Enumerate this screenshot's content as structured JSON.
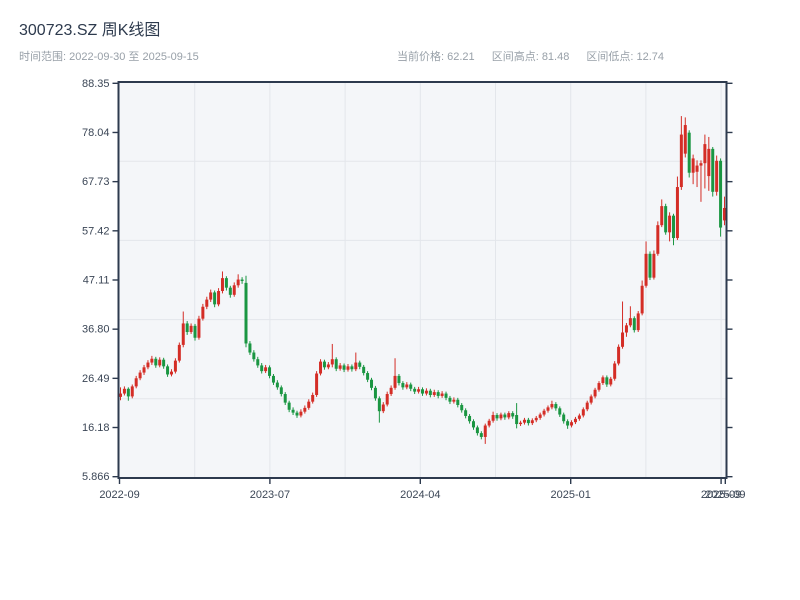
{
  "header": {
    "title": "300723.SZ 周K线图",
    "subtitle_left": "时间范围: 2022-09-30 至 2025-09-15",
    "stats": [
      {
        "text": "当前价格: 62.21"
      },
      {
        "text": "区间高点: 81.48"
      },
      {
        "text": "区间低点: 12.74"
      }
    ]
  },
  "chart_data": {
    "type": "candlestick",
    "symbol": "300723.SZ",
    "interval": "weekly",
    "title": "300723.SZ 周K线图",
    "date_start": "2022-09-30",
    "date_end": "2025-09-15",
    "current_price": 62.21,
    "range_high": 81.48,
    "range_low": 12.74,
    "grid": "on",
    "colors": {
      "up": "#d42d26",
      "down": "#1a9642",
      "plot_bg": "#f4f6f9",
      "grid_line": "#e3e6eb",
      "axis_border": "#2d3a4e",
      "tick_text": "#3b4656"
    },
    "y_axis": {
      "min": 5.866,
      "max": 88.35,
      "tick_labels": [
        "88.35",
        "78.04",
        "67.73",
        "57.42",
        "47.11",
        "36.80",
        "26.49",
        "16.18",
        "5.866"
      ],
      "tick_values": [
        88.35,
        78.04,
        67.73,
        57.42,
        47.11,
        36.8,
        26.49,
        16.18,
        5.866
      ]
    },
    "x_axis": {
      "ticks": [
        {
          "label": "2022-09",
          "f": 0
        },
        {
          "label": "2023-07",
          "f": 0.25
        },
        {
          "label": "2024-04",
          "f": 0.5
        },
        {
          "label": "2025-01",
          "f": 0.75
        },
        {
          "label": "2025-09",
          "f": 1
        },
        {
          "label": "2025-09",
          "f": 1.007
        }
      ]
    },
    "candles": [
      [
        22.6,
        24.6,
        21.9,
        23.3
      ],
      [
        23.3,
        24.8,
        22.9,
        24.3
      ],
      [
        24.3,
        24.6,
        21.8,
        22.7
      ],
      [
        22.7,
        25.2,
        22.3,
        24.8
      ],
      [
        24.8,
        27.0,
        24.4,
        26.5
      ],
      [
        26.5,
        28.2,
        26.1,
        27.7
      ],
      [
        27.7,
        29.3,
        27.2,
        28.8
      ],
      [
        28.8,
        30.3,
        28.4,
        29.8
      ],
      [
        29.8,
        31.2,
        29.3,
        30.6
      ],
      [
        30.6,
        31.0,
        28.7,
        29.2
      ],
      [
        29.2,
        30.9,
        28.8,
        30.4
      ],
      [
        30.4,
        30.8,
        28.5,
        29.0
      ],
      [
        29.0,
        29.4,
        26.8,
        27.3
      ],
      [
        27.3,
        28.4,
        26.9,
        27.9
      ],
      [
        27.9,
        30.7,
        27.5,
        30.2
      ],
      [
        30.2,
        34.0,
        29.8,
        33.5
      ],
      [
        33.5,
        40.5,
        33.0,
        38.0
      ],
      [
        38.0,
        38.5,
        35.6,
        36.2
      ],
      [
        36.2,
        38.0,
        35.8,
        37.5
      ],
      [
        37.5,
        37.9,
        34.4,
        35.0
      ],
      [
        35.0,
        39.6,
        34.6,
        39.0
      ],
      [
        39.0,
        42.1,
        38.6,
        41.5
      ],
      [
        41.5,
        43.6,
        41.0,
        43.0
      ],
      [
        43.0,
        45.1,
        42.5,
        44.5
      ],
      [
        44.5,
        44.9,
        41.4,
        42.0
      ],
      [
        42.0,
        45.4,
        41.6,
        44.8
      ],
      [
        44.8,
        48.9,
        44.3,
        47.5
      ],
      [
        47.5,
        47.9,
        44.9,
        45.5
      ],
      [
        45.5,
        45.9,
        43.4,
        44.0
      ],
      [
        44.0,
        46.6,
        43.6,
        46.0
      ],
      [
        46.0,
        48.3,
        45.5,
        47.2
      ],
      [
        47.2,
        47.7,
        46.3,
        46.9
      ],
      [
        46.5,
        48.0,
        33.0,
        33.8
      ],
      [
        33.8,
        34.3,
        31.4,
        31.9
      ],
      [
        31.9,
        32.4,
        30.0,
        30.5
      ],
      [
        30.5,
        31.0,
        28.7,
        29.2
      ],
      [
        29.2,
        29.7,
        27.5,
        28.0
      ],
      [
        28.0,
        29.3,
        27.6,
        28.8
      ],
      [
        28.8,
        29.2,
        26.5,
        27.0
      ],
      [
        27.0,
        27.4,
        25.1,
        25.6
      ],
      [
        25.6,
        26.1,
        24.1,
        24.6
      ],
      [
        24.6,
        25.0,
        22.7,
        23.2
      ],
      [
        23.2,
        23.6,
        20.9,
        21.4
      ],
      [
        21.4,
        21.8,
        19.4,
        19.9
      ],
      [
        19.9,
        20.4,
        18.8,
        19.3
      ],
      [
        19.3,
        19.7,
        18.2,
        18.7
      ],
      [
        18.7,
        20.0,
        18.3,
        19.5
      ],
      [
        19.5,
        20.8,
        19.1,
        20.3
      ],
      [
        20.3,
        22.1,
        19.9,
        21.6
      ],
      [
        21.6,
        23.5,
        21.2,
        23.0
      ],
      [
        23.0,
        28.0,
        22.6,
        27.5
      ],
      [
        27.5,
        30.5,
        27.1,
        30.0
      ],
      [
        30.0,
        30.4,
        28.3,
        28.8
      ],
      [
        28.8,
        29.9,
        28.4,
        29.4
      ],
      [
        29.4,
        33.7,
        28.8,
        30.5
      ],
      [
        30.5,
        30.9,
        28.0,
        28.5
      ],
      [
        28.5,
        29.7,
        28.1,
        29.2
      ],
      [
        29.2,
        29.6,
        27.8,
        28.3
      ],
      [
        28.3,
        29.5,
        27.9,
        29.0
      ],
      [
        29.0,
        29.4,
        27.9,
        28.4
      ],
      [
        28.4,
        31.9,
        28.0,
        29.8
      ],
      [
        29.8,
        30.2,
        28.4,
        28.9
      ],
      [
        28.9,
        29.3,
        27.1,
        27.6
      ],
      [
        27.6,
        28.0,
        25.7,
        26.2
      ],
      [
        26.2,
        26.6,
        24.0,
        24.5
      ],
      [
        24.5,
        24.9,
        21.8,
        22.3
      ],
      [
        22.3,
        22.7,
        17.2,
        19.6
      ],
      [
        19.6,
        21.5,
        19.2,
        21.0
      ],
      [
        21.0,
        23.7,
        20.6,
        23.2
      ],
      [
        23.2,
        25.0,
        22.8,
        24.5
      ],
      [
        24.5,
        30.7,
        24.1,
        27.0
      ],
      [
        27.0,
        27.4,
        25.0,
        25.5
      ],
      [
        25.5,
        25.9,
        24.1,
        24.6
      ],
      [
        24.6,
        25.7,
        24.2,
        25.2
      ],
      [
        25.2,
        25.6,
        23.8,
        24.3
      ],
      [
        24.3,
        24.7,
        23.2,
        23.7
      ],
      [
        23.7,
        24.7,
        23.3,
        24.2
      ],
      [
        24.2,
        24.6,
        22.8,
        23.3
      ],
      [
        23.3,
        24.4,
        22.9,
        23.9
      ],
      [
        23.9,
        24.3,
        22.5,
        23.0
      ],
      [
        23.0,
        24.1,
        22.6,
        23.6
      ],
      [
        23.6,
        24.0,
        22.3,
        22.8
      ],
      [
        22.8,
        23.8,
        22.4,
        23.3
      ],
      [
        23.3,
        23.7,
        21.9,
        22.4
      ],
      [
        22.4,
        22.8,
        21.1,
        21.6
      ],
      [
        21.6,
        22.5,
        21.2,
        22.0
      ],
      [
        22.0,
        22.4,
        20.4,
        20.9
      ],
      [
        20.9,
        21.3,
        19.3,
        19.8
      ],
      [
        19.8,
        20.2,
        18.1,
        18.6
      ],
      [
        18.6,
        19.0,
        17.0,
        17.5
      ],
      [
        17.5,
        17.9,
        15.7,
        16.2
      ],
      [
        16.2,
        16.6,
        14.5,
        15.0
      ],
      [
        15.0,
        15.4,
        13.7,
        14.2
      ],
      [
        14.2,
        17.0,
        12.74,
        16.6
      ],
      [
        16.6,
        18.0,
        16.2,
        17.6
      ],
      [
        17.6,
        19.5,
        17.2,
        18.8
      ],
      [
        18.8,
        19.2,
        17.6,
        18.1
      ],
      [
        18.1,
        19.3,
        17.7,
        18.9
      ],
      [
        18.9,
        19.3,
        17.8,
        18.3
      ],
      [
        18.3,
        19.6,
        17.9,
        19.2
      ],
      [
        19.2,
        19.6,
        18.0,
        18.5
      ],
      [
        18.8,
        21.3,
        16.0,
        16.9
      ],
      [
        16.9,
        17.6,
        16.5,
        17.2
      ],
      [
        17.2,
        18.2,
        16.8,
        17.8
      ],
      [
        17.8,
        18.2,
        16.6,
        17.1
      ],
      [
        17.1,
        18.1,
        16.7,
        17.7
      ],
      [
        17.7,
        18.6,
        17.3,
        18.2
      ],
      [
        18.2,
        19.3,
        17.8,
        18.9
      ],
      [
        18.9,
        20.1,
        18.5,
        19.7
      ],
      [
        19.7,
        20.8,
        19.3,
        20.4
      ],
      [
        20.4,
        21.8,
        20.0,
        21.1
      ],
      [
        21.1,
        21.5,
        19.7,
        20.2
      ],
      [
        20.2,
        20.6,
        18.4,
        18.9
      ],
      [
        18.9,
        19.3,
        17.0,
        17.5
      ],
      [
        17.5,
        17.9,
        15.9,
        16.6
      ],
      [
        16.6,
        17.7,
        16.2,
        17.3
      ],
      [
        17.3,
        18.4,
        16.9,
        18.0
      ],
      [
        18.0,
        19.1,
        17.6,
        18.7
      ],
      [
        18.7,
        20.4,
        18.3,
        20.0
      ],
      [
        20.0,
        21.8,
        19.6,
        21.4
      ],
      [
        21.4,
        23.1,
        21.0,
        22.7
      ],
      [
        22.7,
        24.5,
        22.3,
        24.1
      ],
      [
        24.1,
        25.9,
        23.7,
        25.5
      ],
      [
        25.5,
        27.1,
        25.1,
        26.7
      ],
      [
        26.7,
        27.1,
        24.7,
        25.2
      ],
      [
        25.2,
        26.8,
        24.8,
        26.4
      ],
      [
        26.4,
        30.1,
        26.0,
        29.6
      ],
      [
        29.6,
        33.6,
        29.2,
        33.1
      ],
      [
        33.1,
        42.6,
        32.7,
        36.1
      ],
      [
        36.1,
        38.1,
        35.2,
        37.6
      ],
      [
        37.6,
        41.6,
        37.2,
        39.1
      ],
      [
        39.1,
        39.5,
        36.1,
        36.6
      ],
      [
        36.6,
        40.6,
        36.2,
        40.1
      ],
      [
        40.1,
        47.0,
        39.7,
        45.9
      ],
      [
        45.9,
        55.2,
        45.5,
        52.6
      ],
      [
        52.6,
        53.1,
        47.1,
        47.6
      ],
      [
        47.6,
        53.3,
        47.2,
        52.6
      ],
      [
        52.6,
        59.4,
        52.2,
        58.6
      ],
      [
        58.6,
        64.0,
        58.2,
        62.6
      ],
      [
        62.6,
        63.1,
        56.6,
        57.1
      ],
      [
        57.1,
        61.3,
        55.2,
        60.6
      ],
      [
        60.6,
        61.0,
        54.4,
        55.9
      ],
      [
        55.9,
        68.8,
        55.5,
        66.6
      ],
      [
        66.6,
        81.48,
        66.0,
        77.6
      ],
      [
        73.6,
        81.2,
        72.8,
        79.6
      ],
      [
        78.0,
        78.5,
        68.6,
        69.6
      ],
      [
        69.6,
        73.4,
        67.2,
        72.6
      ],
      [
        69.8,
        72.2,
        66.6,
        71.1
      ],
      [
        71.1,
        72.2,
        63.5,
        71.6
      ],
      [
        71.6,
        77.6,
        66.3,
        75.6
      ],
      [
        68.9,
        77.1,
        65.8,
        74.6
      ],
      [
        74.6,
        75.0,
        64.6,
        65.6
      ],
      [
        65.6,
        73.2,
        64.8,
        72.1
      ],
      [
        72.1,
        72.6,
        56.2,
        58.1
      ],
      [
        59.6,
        64.6,
        58.6,
        62.21
      ]
    ]
  }
}
